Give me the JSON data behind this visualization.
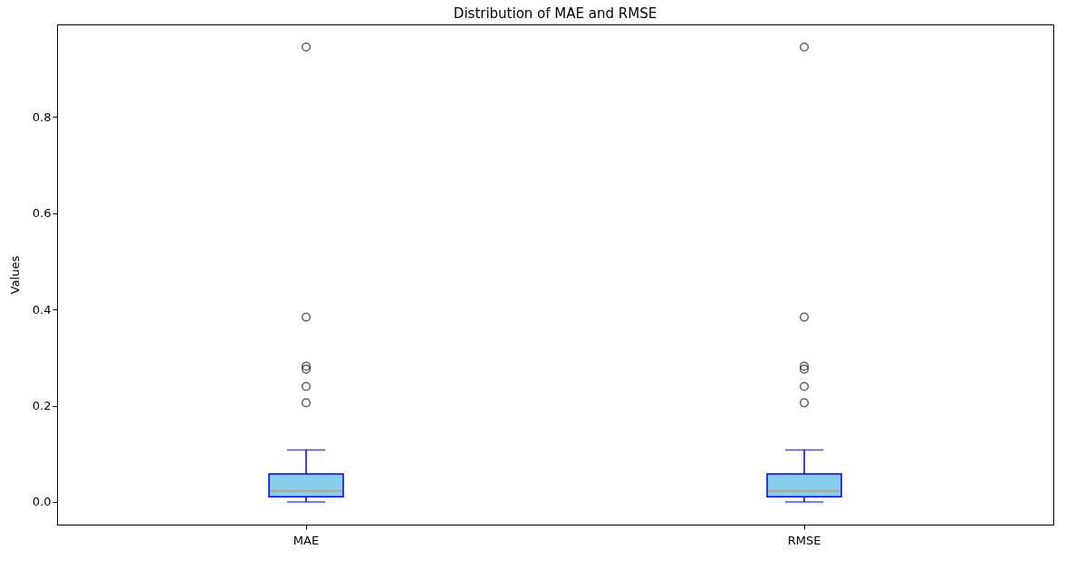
{
  "chart_data": {
    "type": "box",
    "title": "Distribution of MAE and RMSE",
    "ylabel": "Values",
    "categories": [
      "MAE",
      "RMSE"
    ],
    "boxes": [
      {
        "low": 0.0,
        "q1": 0.011,
        "median": 0.023,
        "q3": 0.058,
        "high": 0.108,
        "outliers": [
          0.945,
          0.384,
          0.282,
          0.276,
          0.24,
          0.206
        ]
      },
      {
        "low": 0.0,
        "q1": 0.011,
        "median": 0.023,
        "q3": 0.058,
        "high": 0.108,
        "outliers": [
          0.945,
          0.384,
          0.282,
          0.276,
          0.24,
          0.206
        ]
      }
    ],
    "color": "#87ceeb",
    "ylim": [
      -0.047,
      0.992
    ],
    "yticks": [
      {
        "value": 0,
        "label": "0.0"
      },
      {
        "value": 0.2,
        "label": "0.2"
      },
      {
        "value": 0.4,
        "label": "0.4"
      },
      {
        "value": 0.6,
        "label": "0.6"
      },
      {
        "value": 0.8,
        "label": "0.8"
      }
    ],
    "grid": false
  }
}
